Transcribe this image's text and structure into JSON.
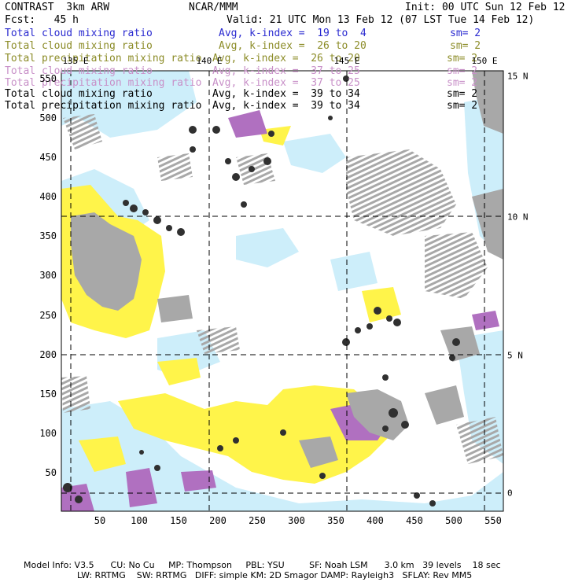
{
  "header": {
    "model": "CONTRAST  3km ARW",
    "fcst": "Fcst:   45 h",
    "center": "NCAR/MMM",
    "init": "Init: 00 UTC Sun 12 Feb 12",
    "valid": "Valid: 21 UTC Mon 13 Feb 12 (07 LST Tue 14 Feb 12)"
  },
  "legend": [
    {
      "label": "Total cloud mixing ratio",
      "avg": "Avg, k-index =  19 to  4",
      "sm": "sm= 2",
      "color": "#2a2ad0"
    },
    {
      "label": "Total cloud mixing ratio",
      "avg": "Avg, k-index =  26 to 20",
      "sm": "sm= 2",
      "color": "#8c8c28"
    },
    {
      "label": "Total precipitation mixing ratio",
      "avg": "Avg, k-index =  26 to 20",
      "sm": "sm= 2",
      "color": "#8c8c28"
    },
    {
      "label": "Total cloud mixing ratio",
      "avg": "Avg, k-index =  37 to 25",
      "sm": "sm= 2",
      "color": "#c890c8"
    },
    {
      "label": "Total precipitation mixing ratio",
      "avg": "Avg, k-index =  37 to 25",
      "sm": "sm= 2",
      "color": "#c890c8"
    },
    {
      "label": "Total cloud mixing ratio",
      "avg": "Avg, k-index =  39 to 34",
      "sm": "sm= 2",
      "color": "#000000"
    },
    {
      "label": "Total precipitation mixing ratio",
      "avg": "Avg, k-index =  39 to 34",
      "sm": "sm= 2",
      "color": "#000000"
    }
  ],
  "axes": {
    "x_ticks": [
      "50",
      "100",
      "150",
      "200",
      "250",
      "300",
      "350",
      "400",
      "450",
      "500",
      "550"
    ],
    "y_ticks": [
      "50",
      "100",
      "150",
      "200",
      "250",
      "300",
      "350",
      "400",
      "450",
      "500",
      "550"
    ],
    "lat_labels": [
      "15 N",
      "10 N",
      "5 N",
      "0"
    ],
    "lon_labels": [
      "135 E",
      "140 E",
      "145 E",
      "150 E"
    ]
  },
  "footer": {
    "line1": "Model Info: V3.5      CU: No Cu     MP: Thompson     PBL: YSU         SF: Noah LSM      3.0 km   39 levels    18 sec",
    "line2": "LW: RRTMG    SW: RRTMG   DIFF: simple KM: 2D Smagor DAMP: Rayleigh3   SFLAY: Rev MM5"
  },
  "colors": {
    "light_blue": "#cdeefa",
    "yellow": "#fff44a",
    "purple": "#b070c0",
    "grey": "#a8a8a8",
    "dark": "#303030"
  }
}
